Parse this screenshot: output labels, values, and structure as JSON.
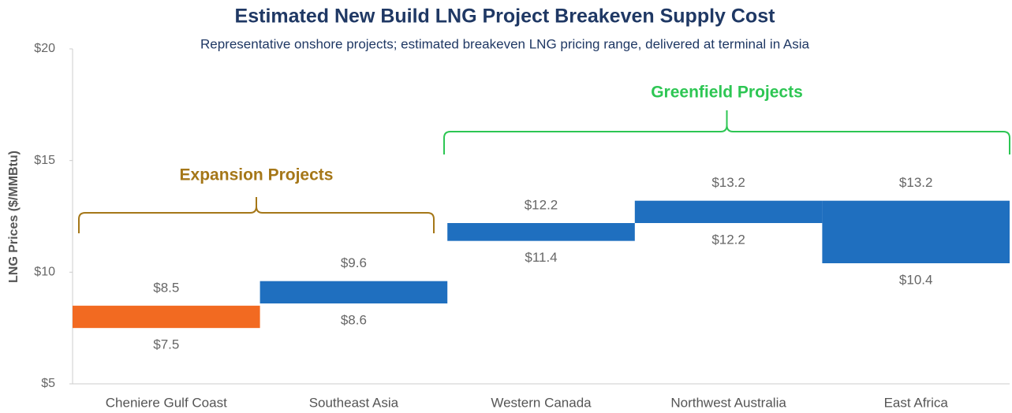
{
  "chart_data": {
    "type": "floating_bar",
    "title": "Estimated New Build LNG Project Breakeven Supply Cost",
    "subtitle": "Representative onshore projects; estimated breakeven LNG pricing range, delivered at terminal in Asia",
    "y_label": "LNG Prices ($/MMBtu)",
    "categories": [
      "Cheniere Gulf Coast",
      "Southeast Asia",
      "Western Canada",
      "Northwest Australia",
      "East Africa"
    ],
    "low": {
      "values": [
        7.5,
        8.6,
        11.4,
        12.2,
        10.4
      ],
      "value_labels": [
        "$7.5",
        "$8.6",
        "$11.4",
        "$12.2",
        "$10.4"
      ]
    },
    "high": {
      "values": [
        8.5,
        9.6,
        12.2,
        13.2,
        13.2
      ],
      "value_labels": [
        "$8.5",
        "$9.6",
        "$12.2",
        "$13.2",
        "$13.2"
      ]
    },
    "colors": [
      "#f26a21",
      "#1f6fbf",
      "#1f6fbf",
      "#1f6fbf",
      "#1f6fbf"
    ],
    "ylim": [
      5,
      20
    ],
    "yticks": [
      {
        "value": 5,
        "label": "$5"
      },
      {
        "value": 10,
        "label": "$10"
      },
      {
        "value": 15,
        "label": "$15"
      },
      {
        "value": 20,
        "label": "$20"
      }
    ],
    "annotations": [
      {
        "text": "Expansion Projects",
        "color": "#a57718"
      },
      {
        "text": "Greenfield Projects",
        "color": "#2dc653"
      }
    ]
  }
}
